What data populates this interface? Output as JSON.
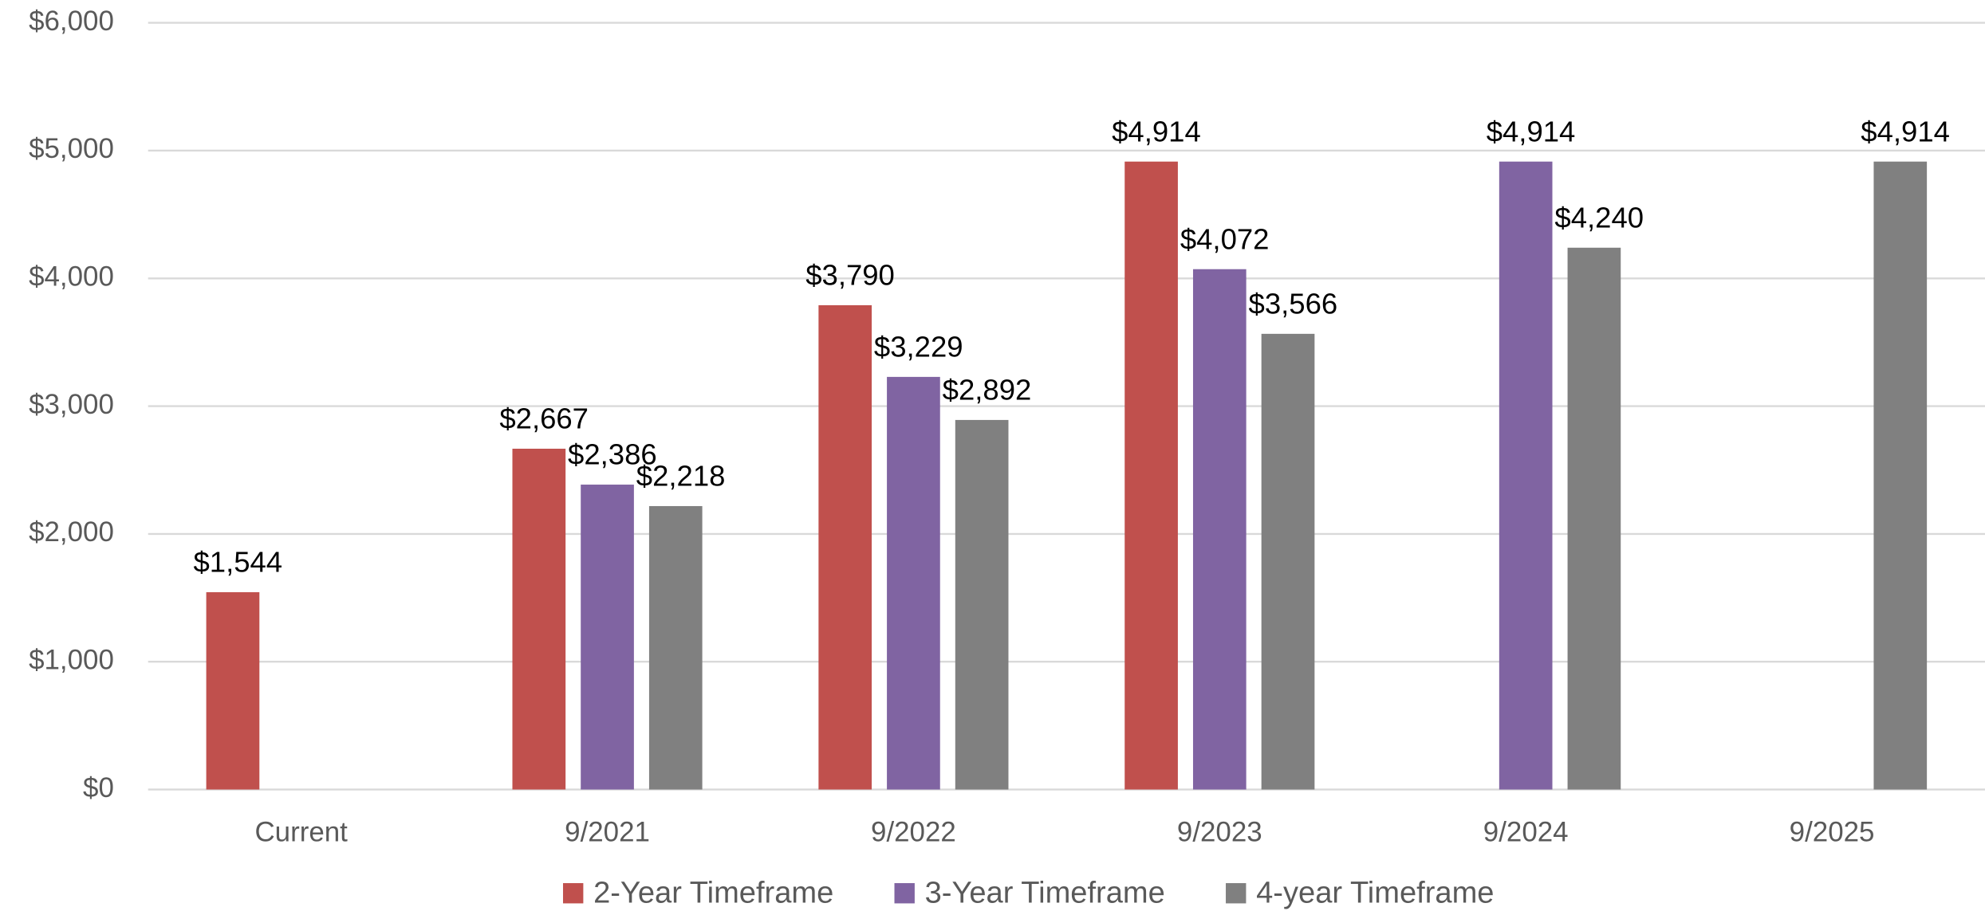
{
  "chart_data": {
    "type": "bar",
    "categories": [
      "Current",
      "9/2021",
      "9/2022",
      "9/2023",
      "9/2024",
      "9/2025"
    ],
    "series": [
      {
        "name": "2-Year Timeframe",
        "color": "#c0504d",
        "values": [
          1544,
          2667,
          3790,
          4914,
          null,
          null
        ],
        "value_labels": [
          "$1,544",
          "$2,667",
          "$3,790",
          "$4,914",
          null,
          null
        ]
      },
      {
        "name": "3-Year Timeframe",
        "color": "#8064a2",
        "values": [
          null,
          2386,
          3229,
          4072,
          4914,
          null
        ],
        "value_labels": [
          null,
          "$2,386",
          "$3,229",
          "$4,072",
          "$4,914",
          null
        ]
      },
      {
        "name": "4-year Timeframe",
        "color": "#808080",
        "values": [
          null,
          2218,
          2892,
          3566,
          4240,
          4914
        ],
        "value_labels": [
          null,
          "$2,218",
          "$2,892",
          "$3,566",
          "$4,240",
          "$4,914"
        ]
      }
    ],
    "ylim": [
      0,
      6000
    ],
    "yticks": [
      {
        "value": 0,
        "label": "$0"
      },
      {
        "value": 1000,
        "label": "$1,000"
      },
      {
        "value": 2000,
        "label": "$2,000"
      },
      {
        "value": 3000,
        "label": "$3,000"
      },
      {
        "value": 4000,
        "label": "$4,000"
      },
      {
        "value": 5000,
        "label": "$5,000"
      },
      {
        "value": 6000,
        "label": "$6,000"
      }
    ],
    "grid": true,
    "legend": "bottom"
  }
}
